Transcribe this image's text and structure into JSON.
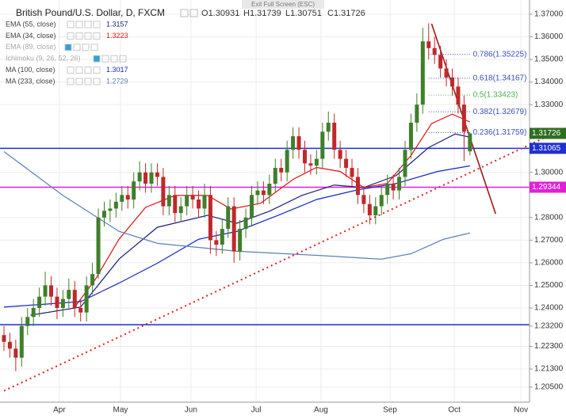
{
  "exit_hint": "Exit Full Screen (ESC)",
  "chart_data": {
    "type": "candlestick",
    "title": "British Pound/U.S. Dollar, D, FXCM",
    "ohlc_header": [
      {
        "label": "O",
        "value": 1.30931
      },
      {
        "label": "H",
        "value": 1.31739
      },
      {
        "label": "L",
        "value": 1.30751
      },
      {
        "label": "C",
        "value": 1.31726
      }
    ],
    "indicators": [
      {
        "name": "EMA (55, close)",
        "value": 1.3157,
        "color": "#1b1f7a",
        "x": [
          9,
          26,
          39,
          52,
          69,
          79,
          90,
          101,
          112,
          122,
          133,
          144,
          153,
          158
        ],
        "values": [
          1.2368,
          1.2404,
          1.2616,
          1.2757,
          1.281,
          1.2775,
          1.2828,
          1.2898,
          1.2944,
          1.2933,
          1.2986,
          1.311,
          1.317,
          1.3156
        ]
      },
      {
        "name": "EMA (34, close)",
        "value": 1.3223,
        "color": "#e01010",
        "x": [
          24,
          31,
          39,
          48,
          58,
          69,
          77,
          87,
          98,
          106,
          114,
          122,
          130,
          138,
          145,
          152,
          158
        ],
        "values": [
          1.2404,
          1.2527,
          1.2704,
          1.2845,
          1.2898,
          1.2898,
          1.2838,
          1.2863,
          1.2969,
          1.3022,
          1.3004,
          1.2933,
          1.2951,
          1.3075,
          1.3216,
          1.3258,
          1.3223
        ]
      },
      {
        "name": "EMA (89, close)",
        "color": "#b0b0b0"
      },
      {
        "name": "Ichimoku (9, 26, 52, 26)",
        "color": "#b0b0b0"
      },
      {
        "name": "MA (100, close)",
        "value": 1.3017,
        "color": "#1428c8",
        "x": [
          0,
          26,
          39,
          52,
          66,
          79,
          93,
          106,
          120,
          133,
          147,
          158
        ],
        "values": [
          1.2404,
          1.2428,
          1.251,
          1.2598,
          1.2704,
          1.2739,
          1.281,
          1.288,
          1.2923,
          1.2951,
          1.3004,
          1.3029
        ]
      },
      {
        "name": "MA (233, close)",
        "value": 1.2729,
        "color": "#5b7fb8",
        "x": [
          0,
          20,
          39,
          52,
          79,
          106,
          128,
          138,
          149,
          158
        ],
        "values": [
          1.3092,
          1.2898,
          1.2739,
          1.2686,
          1.2651,
          1.2633,
          1.2616,
          1.264,
          1.2704,
          1.2732
        ]
      }
    ],
    "candles": {
      "up_color": "#3f7f2a",
      "down_color": "#c0282a",
      "x": [
        0,
        2,
        4,
        6,
        8,
        10,
        12,
        14,
        16,
        18,
        20,
        22,
        24,
        26,
        28,
        30,
        32,
        34,
        36,
        38,
        40,
        42,
        44,
        46,
        48,
        50,
        52,
        54,
        56,
        58,
        60,
        62,
        64,
        66,
        68,
        70,
        72,
        74,
        76,
        78,
        80,
        82,
        84,
        86,
        88,
        90,
        92,
        94,
        96,
        98,
        100,
        102,
        104,
        106,
        108,
        110,
        112,
        114,
        116,
        118,
        120,
        122,
        124,
        126,
        128,
        130,
        132,
        134,
        136,
        138,
        140,
        142,
        144,
        146,
        148,
        150,
        152,
        154,
        156,
        158
      ],
      "open": [
        1.228,
        1.225,
        1.222,
        1.218,
        1.232,
        1.236,
        1.24,
        1.245,
        1.25,
        1.245,
        1.24,
        1.244,
        1.248,
        1.24,
        1.238,
        1.25,
        1.255,
        1.28,
        1.283,
        1.284,
        1.287,
        1.29,
        1.288,
        1.296,
        1.3,
        1.295,
        1.3,
        1.298,
        1.285,
        1.29,
        1.282,
        1.285,
        1.29,
        1.288,
        1.284,
        1.29,
        1.27,
        1.268,
        1.275,
        1.285,
        1.265,
        1.275,
        1.28,
        1.29,
        1.292,
        1.29,
        1.295,
        1.302,
        1.3,
        1.31,
        1.316,
        1.31,
        1.304,
        1.303,
        1.306,
        1.318,
        1.322,
        1.31,
        1.306,
        1.302,
        1.298,
        1.29,
        1.286,
        1.281,
        1.285,
        1.29,
        1.295,
        1.292,
        1.298,
        1.31,
        1.322,
        1.33,
        1.358,
        1.355,
        1.352,
        1.346,
        1.342,
        1.338,
        1.33,
        1.30931
      ],
      "high": [
        1.232,
        1.229,
        1.226,
        1.236,
        1.24,
        1.244,
        1.249,
        1.256,
        1.254,
        1.249,
        1.248,
        1.253,
        1.252,
        1.244,
        1.254,
        1.26,
        1.284,
        1.287,
        1.288,
        1.291,
        1.294,
        1.294,
        1.3,
        1.305,
        1.304,
        1.304,
        1.304,
        1.302,
        1.294,
        1.294,
        1.289,
        1.294,
        1.294,
        1.292,
        1.295,
        1.294,
        1.274,
        1.279,
        1.289,
        1.289,
        1.279,
        1.284,
        1.294,
        1.296,
        1.296,
        1.299,
        1.306,
        1.306,
        1.314,
        1.32,
        1.32,
        1.314,
        1.308,
        1.31,
        1.322,
        1.327,
        1.326,
        1.314,
        1.31,
        1.306,
        1.302,
        1.294,
        1.29,
        1.289,
        1.294,
        1.299,
        1.299,
        1.302,
        1.314,
        1.326,
        1.335,
        1.364,
        1.366,
        1.36,
        1.356,
        1.35,
        1.346,
        1.342,
        1.334,
        1.31739
      ],
      "low": [
        1.221,
        1.218,
        1.212,
        1.214,
        1.228,
        1.232,
        1.236,
        1.241,
        1.241,
        1.235,
        1.236,
        1.24,
        1.236,
        1.234,
        1.234,
        1.246,
        1.253,
        1.276,
        1.278,
        1.28,
        1.283,
        1.284,
        1.284,
        1.292,
        1.291,
        1.291,
        1.294,
        1.281,
        1.281,
        1.278,
        1.278,
        1.281,
        1.284,
        1.28,
        1.28,
        1.264,
        1.263,
        1.264,
        1.271,
        1.26,
        1.261,
        1.271,
        1.276,
        1.286,
        1.286,
        1.286,
        1.291,
        1.296,
        1.296,
        1.306,
        1.306,
        1.3,
        1.299,
        1.299,
        1.302,
        1.314,
        1.306,
        1.302,
        1.298,
        1.294,
        1.286,
        1.282,
        1.277,
        1.277,
        1.281,
        1.286,
        1.288,
        1.288,
        1.294,
        1.306,
        1.318,
        1.326,
        1.35,
        1.348,
        1.342,
        1.338,
        1.334,
        1.326,
        1.305,
        1.30751
      ],
      "close": [
        1.225,
        1.222,
        1.218,
        1.232,
        1.236,
        1.24,
        1.245,
        1.25,
        1.245,
        1.24,
        1.244,
        1.248,
        1.24,
        1.238,
        1.25,
        1.255,
        1.28,
        1.283,
        1.284,
        1.287,
        1.29,
        1.288,
        1.296,
        1.3,
        1.295,
        1.3,
        1.298,
        1.285,
        1.29,
        1.282,
        1.285,
        1.29,
        1.288,
        1.284,
        1.29,
        1.27,
        1.268,
        1.275,
        1.285,
        1.265,
        1.275,
        1.28,
        1.29,
        1.292,
        1.29,
        1.295,
        1.302,
        1.3,
        1.31,
        1.316,
        1.31,
        1.304,
        1.303,
        1.306,
        1.318,
        1.322,
        1.31,
        1.306,
        1.302,
        1.298,
        1.29,
        1.286,
        1.281,
        1.285,
        1.29,
        1.295,
        1.292,
        1.298,
        1.31,
        1.322,
        1.33,
        1.358,
        1.355,
        1.352,
        1.346,
        1.342,
        1.338,
        1.33,
        1.318,
        1.31726
      ]
    },
    "levels": [
      {
        "value": 1.31065,
        "color": "#1f2fd0"
      },
      {
        "value": 1.29344,
        "color": "#e020d8"
      },
      {
        "value": 1.2326,
        "color": "#1f2fd0"
      }
    ],
    "fib": [
      {
        "label": "0.786(1.35225)",
        "value": 1.35225,
        "color": "#3a4fc0"
      },
      {
        "label": "0.618(1.34167)",
        "value": 1.34167,
        "color": "#3a4fc0"
      },
      {
        "label": "0.5(1.33423)",
        "value": 1.33423,
        "color": "#4caf50"
      },
      {
        "label": "0.382(1.32679)",
        "value": 1.32679,
        "color": "#3a4fc0"
      },
      {
        "label": "0.236(1.31759)",
        "value": 1.31759,
        "color": "#3a4fc0"
      }
    ],
    "trendlines": [
      {
        "color": "#e02020",
        "dotted": true,
        "x": [
          0,
          190.6
        ],
        "values": [
          1.2033,
          1.3198
        ]
      },
      {
        "color": "#a01818",
        "dotted": false,
        "x": [
          145,
          166.7
        ],
        "values": [
          1.3658,
          1.2817
        ]
      }
    ],
    "xlim": [
      -1.34,
      178.2
    ],
    "xticks": [
      {
        "value": 18.8,
        "label": "Apr"
      },
      {
        "value": 39.5,
        "label": "May"
      },
      {
        "value": 63.4,
        "label": "Jun"
      },
      {
        "value": 85.5,
        "label": "Jul"
      },
      {
        "value": 107.5,
        "label": "Aug"
      },
      {
        "value": 130.9,
        "label": "Sep"
      },
      {
        "value": 152.7,
        "label": "Oct"
      },
      {
        "value": 175.3,
        "label": "Nov"
      }
    ],
    "ylim": [
      1.1983,
      1.3763
    ],
    "yticks": [
      {
        "value": 1.37,
        "label": "1.37000"
      },
      {
        "value": 1.36,
        "label": "1.36000"
      },
      {
        "value": 1.35,
        "label": "1.35000"
      },
      {
        "value": 1.34,
        "label": "1.34000"
      },
      {
        "value": 1.33,
        "label": "1.33000"
      },
      {
        "value": 1.3,
        "label": "1.30000"
      },
      {
        "value": 1.28,
        "label": "1.28000"
      },
      {
        "value": 1.27,
        "label": "1.27000"
      },
      {
        "value": 1.26,
        "label": "1.26000"
      },
      {
        "value": 1.25,
        "label": "1.25000"
      },
      {
        "value": 1.24,
        "label": "1.24000"
      },
      {
        "value": 1.232,
        "label": "1.23200"
      },
      {
        "value": 1.223,
        "label": "1.22300"
      },
      {
        "value": 1.213,
        "label": "1.21300"
      },
      {
        "value": 1.205,
        "label": "1.20500"
      }
    ],
    "grid": true
  }
}
